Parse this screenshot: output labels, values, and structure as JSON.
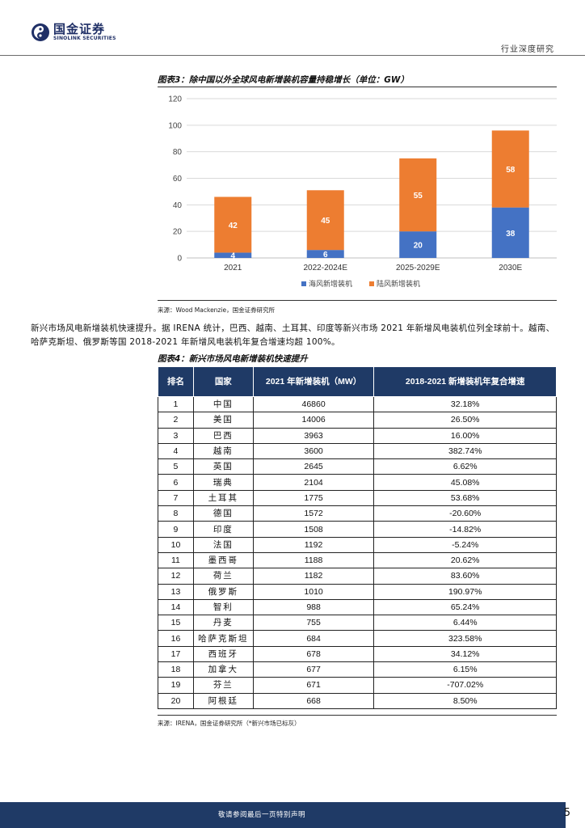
{
  "header": {
    "logo_cn": "国金证券",
    "logo_en": "SINOLINK SECURITIES",
    "report_type": "行业深度研究"
  },
  "figure3": {
    "title": "图表3：除中国以外全球风电新增装机容量持稳增长（单位：GW）",
    "source": "来源：Wood Mackenzie，国金证券研究所"
  },
  "chart_data": {
    "type": "bar",
    "stacked": true,
    "categories": [
      "2021",
      "2022-2024E",
      "2025-2029E",
      "2030E"
    ],
    "series": [
      {
        "name": "海风新增装机",
        "values": [
          4,
          6,
          20,
          38
        ],
        "color": "#4472c4"
      },
      {
        "name": "陆风新增装机",
        "values": [
          42,
          45,
          55,
          58
        ],
        "color": "#ed7d31"
      }
    ],
    "ylim": [
      0,
      120
    ],
    "yticks": [
      0,
      20,
      40,
      60,
      80,
      100,
      120
    ],
    "grid": true,
    "legend": "bottom"
  },
  "body_text": "新兴市场风电新增装机快速提升。据 IRENA 统计，巴西、越南、土耳其、印度等新兴市场 2021 年新增风电装机位列全球前十。越南、哈萨克斯坦、俄罗斯等国 2018-2021 年新增风电装机年复合增速均超 100%。",
  "figure4": {
    "title": "图表4：新兴市场风电新增装机快速提升",
    "source": "来源：IRENA，国金证券研究所（*新兴市场已标灰）",
    "headers": [
      "排名",
      "国家",
      "2021 年新增装机（MW）",
      "2018-2021 新增装机年复合增速"
    ],
    "rows": [
      [
        "1",
        "中国",
        "46860",
        "32.18%"
      ],
      [
        "2",
        "美国",
        "14006",
        "26.50%"
      ],
      [
        "3",
        "巴西",
        "3963",
        "16.00%"
      ],
      [
        "4",
        "越南",
        "3600",
        "382.74%"
      ],
      [
        "5",
        "英国",
        "2645",
        "6.62%"
      ],
      [
        "6",
        "瑞典",
        "2104",
        "45.08%"
      ],
      [
        "7",
        "土耳其",
        "1775",
        "53.68%"
      ],
      [
        "8",
        "德国",
        "1572",
        "-20.60%"
      ],
      [
        "9",
        "印度",
        "1508",
        "-14.82%"
      ],
      [
        "10",
        "法国",
        "1192",
        "-5.24%"
      ],
      [
        "11",
        "墨西哥",
        "1188",
        "20.62%"
      ],
      [
        "12",
        "荷兰",
        "1182",
        "83.60%"
      ],
      [
        "13",
        "俄罗斯",
        "1010",
        "190.97%"
      ],
      [
        "14",
        "智利",
        "988",
        "65.24%"
      ],
      [
        "15",
        "丹麦",
        "755",
        "6.44%"
      ],
      [
        "16",
        "哈萨克斯坦",
        "684",
        "323.58%"
      ],
      [
        "17",
        "西班牙",
        "678",
        "34.12%"
      ],
      [
        "18",
        "加拿大",
        "677",
        "6.15%"
      ],
      [
        "19",
        "芬兰",
        "671",
        "-707.02%"
      ],
      [
        "20",
        "阿根廷",
        "668",
        "8.50%"
      ]
    ]
  },
  "footer": {
    "disclaimer": "敬请参阅最后一页特别声明",
    "page": "5"
  }
}
